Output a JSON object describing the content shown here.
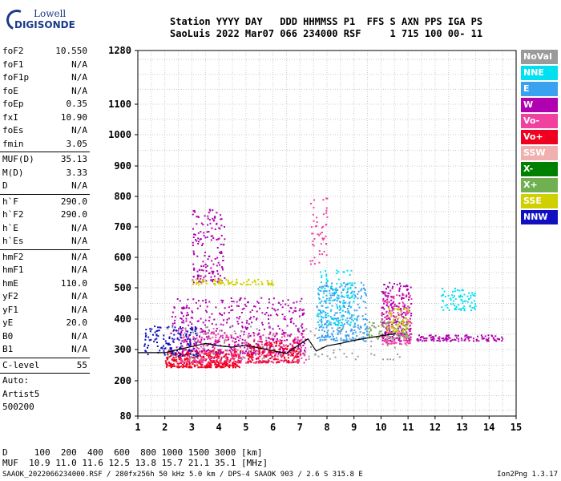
{
  "logo": {
    "line1": "Lowell",
    "line2": "DIGISONDE"
  },
  "header": {
    "line1": "Station YYYY DAY   DDD HHMMSS P1  FFS S AXN PPS IGA PS",
    "line2": "SaoLuis 2022 Mar07 066 234000 RSF     1 715 100 00- 11"
  },
  "params": {
    "group1": [
      {
        "label": "foF2",
        "value": "10.550"
      },
      {
        "label": "foF1",
        "value": "N/A"
      },
      {
        "label": "foF1p",
        "value": "N/A"
      },
      {
        "label": "foE",
        "value": "N/A"
      },
      {
        "label": "foEp",
        "value": "0.35"
      },
      {
        "label": "fxI",
        "value": "10.90"
      },
      {
        "label": "foEs",
        "value": "N/A"
      },
      {
        "label": "fmin",
        "value": "3.05"
      }
    ],
    "group2": [
      {
        "label": "MUF(D)",
        "value": "35.13"
      },
      {
        "label": "M(D)",
        "value": "3.33"
      },
      {
        "label": "D",
        "value": "N/A"
      }
    ],
    "group3": [
      {
        "label": "h`F",
        "value": "290.0"
      },
      {
        "label": "h`F2",
        "value": "290.0"
      },
      {
        "label": "h`E",
        "value": "N/A"
      },
      {
        "label": "h`Es",
        "value": "N/A"
      }
    ],
    "group4": [
      {
        "label": "hmF2",
        "value": "N/A"
      },
      {
        "label": "hmF1",
        "value": "N/A"
      },
      {
        "label": "hmE",
        "value": "110.0"
      },
      {
        "label": "yF2",
        "value": "N/A"
      },
      {
        "label": "yF1",
        "value": "N/A"
      },
      {
        "label": "yE",
        "value": "20.0"
      },
      {
        "label": "B0",
        "value": "N/A"
      },
      {
        "label": "B1",
        "value": "N/A"
      }
    ],
    "group5": [
      {
        "label": "C-level",
        "value": "55"
      }
    ],
    "free": [
      "Auto:",
      "Artist5",
      "500200"
    ]
  },
  "legend": [
    {
      "name": "NoVal",
      "color": "#9a9a9a"
    },
    {
      "name": "NNE",
      "color": "#00e0f0"
    },
    {
      "name": "E",
      "color": "#3aa0f0"
    },
    {
      "name": "W",
      "color": "#b000b0"
    },
    {
      "name": "Vo-",
      "color": "#f040a0"
    },
    {
      "name": "Vo+",
      "color": "#f00020"
    },
    {
      "name": "SSW",
      "color": "#f0b0b0"
    },
    {
      "name": "X-",
      "color": "#008000"
    },
    {
      "name": "X+",
      "color": "#70b050"
    },
    {
      "name": "SSE",
      "color": "#d0d000"
    },
    {
      "name": "NNW",
      "color": "#1010c0"
    }
  ],
  "chart_data": {
    "type": "scatter",
    "x_ticks": [
      "1",
      "2",
      "3",
      "4",
      "5",
      "6",
      "7",
      "8",
      "9",
      "10",
      "11",
      "12",
      "13",
      "14",
      "15"
    ],
    "y_ticks": [
      "80",
      "200",
      "300",
      "400",
      "500",
      "600",
      "700",
      "800",
      "900",
      "1000",
      "1100",
      "1280"
    ],
    "xlim": [
      1,
      15
    ],
    "ylim": [
      80,
      1280
    ],
    "grid": true,
    "y_scale": "nonlinear",
    "trace": {
      "x": [
        1.0,
        1.5,
        2.0,
        2.5,
        3.0,
        3.5,
        4.0,
        4.5,
        5.0,
        5.5,
        6.0,
        6.5,
        7.0,
        7.3,
        7.6,
        8.0,
        8.5,
        9.0,
        9.5,
        10.0,
        10.55
      ],
      "y": [
        290,
        290,
        290,
        300,
        310,
        320,
        312,
        308,
        314,
        305,
        296,
        288,
        318,
        335,
        295,
        312,
        320,
        330,
        338,
        345,
        352
      ]
    },
    "clusters": [
      {
        "series": "Vo+",
        "x": [
          2.0,
          4.8
        ],
        "y": [
          245,
          300
        ],
        "n": 420
      },
      {
        "series": "Vo-",
        "x": [
          2.5,
          7.2
        ],
        "y": [
          260,
          360
        ],
        "n": 420
      },
      {
        "series": "W",
        "x": [
          2.2,
          7.2
        ],
        "y": [
          290,
          470
        ],
        "n": 420
      },
      {
        "series": "NNW",
        "x": [
          1.2,
          3.2
        ],
        "y": [
          280,
          380
        ],
        "n": 140
      },
      {
        "series": "E",
        "x": [
          7.6,
          9.5
        ],
        "y": [
          330,
          520
        ],
        "n": 300
      },
      {
        "series": "NNE",
        "x": [
          7.6,
          9.0
        ],
        "y": [
          380,
          560
        ],
        "n": 120
      },
      {
        "series": "W",
        "x": [
          10.0,
          11.1
        ],
        "y": [
          330,
          520
        ],
        "n": 220
      },
      {
        "series": "Vo-",
        "x": [
          10.0,
          11.1
        ],
        "y": [
          320,
          480
        ],
        "n": 150
      },
      {
        "series": "Vo+",
        "x": [
          5.0,
          7.0
        ],
        "y": [
          260,
          330
        ],
        "n": 180
      },
      {
        "series": "SSE",
        "x": [
          10.2,
          11.0
        ],
        "y": [
          360,
          440
        ],
        "n": 60
      },
      {
        "series": "NNE",
        "x": [
          12.2,
          13.5
        ],
        "y": [
          430,
          500
        ],
        "n": 80
      },
      {
        "series": "W",
        "x": [
          3.0,
          4.2
        ],
        "y": [
          520,
          760
        ],
        "n": 160
      },
      {
        "series": "SSE",
        "x": [
          3.0,
          6.0
        ],
        "y": [
          512,
          530
        ],
        "n": 80
      },
      {
        "series": "W",
        "x": [
          11.3,
          14.5
        ],
        "y": [
          330,
          350
        ],
        "n": 120
      },
      {
        "series": "Vo-",
        "x": [
          7.3,
          8.0
        ],
        "y": [
          580,
          800
        ],
        "n": 50
      },
      {
        "series": "X+",
        "x": [
          9.5,
          11.0
        ],
        "y": [
          340,
          400
        ],
        "n": 60
      },
      {
        "series": "NoVal",
        "x": [
          2.0,
          11.0
        ],
        "y": [
          270,
          380
        ],
        "n": 120
      }
    ]
  },
  "footer": {
    "line1": "D     100  200  400  600  800 1000 1500 3000 [km]",
    "line2": "MUF  10.9 11.0 11.6 12.5 13.8 15.7 21.1 35.1 [MHz]",
    "line3": "SAAOK_2022066234000.RSF / 280fx256h 50 kHz 5.0 km / DPS-4 SAAOK 903 / 2.6 S 315.8 E",
    "version": "Ion2Png 1.3.17"
  }
}
